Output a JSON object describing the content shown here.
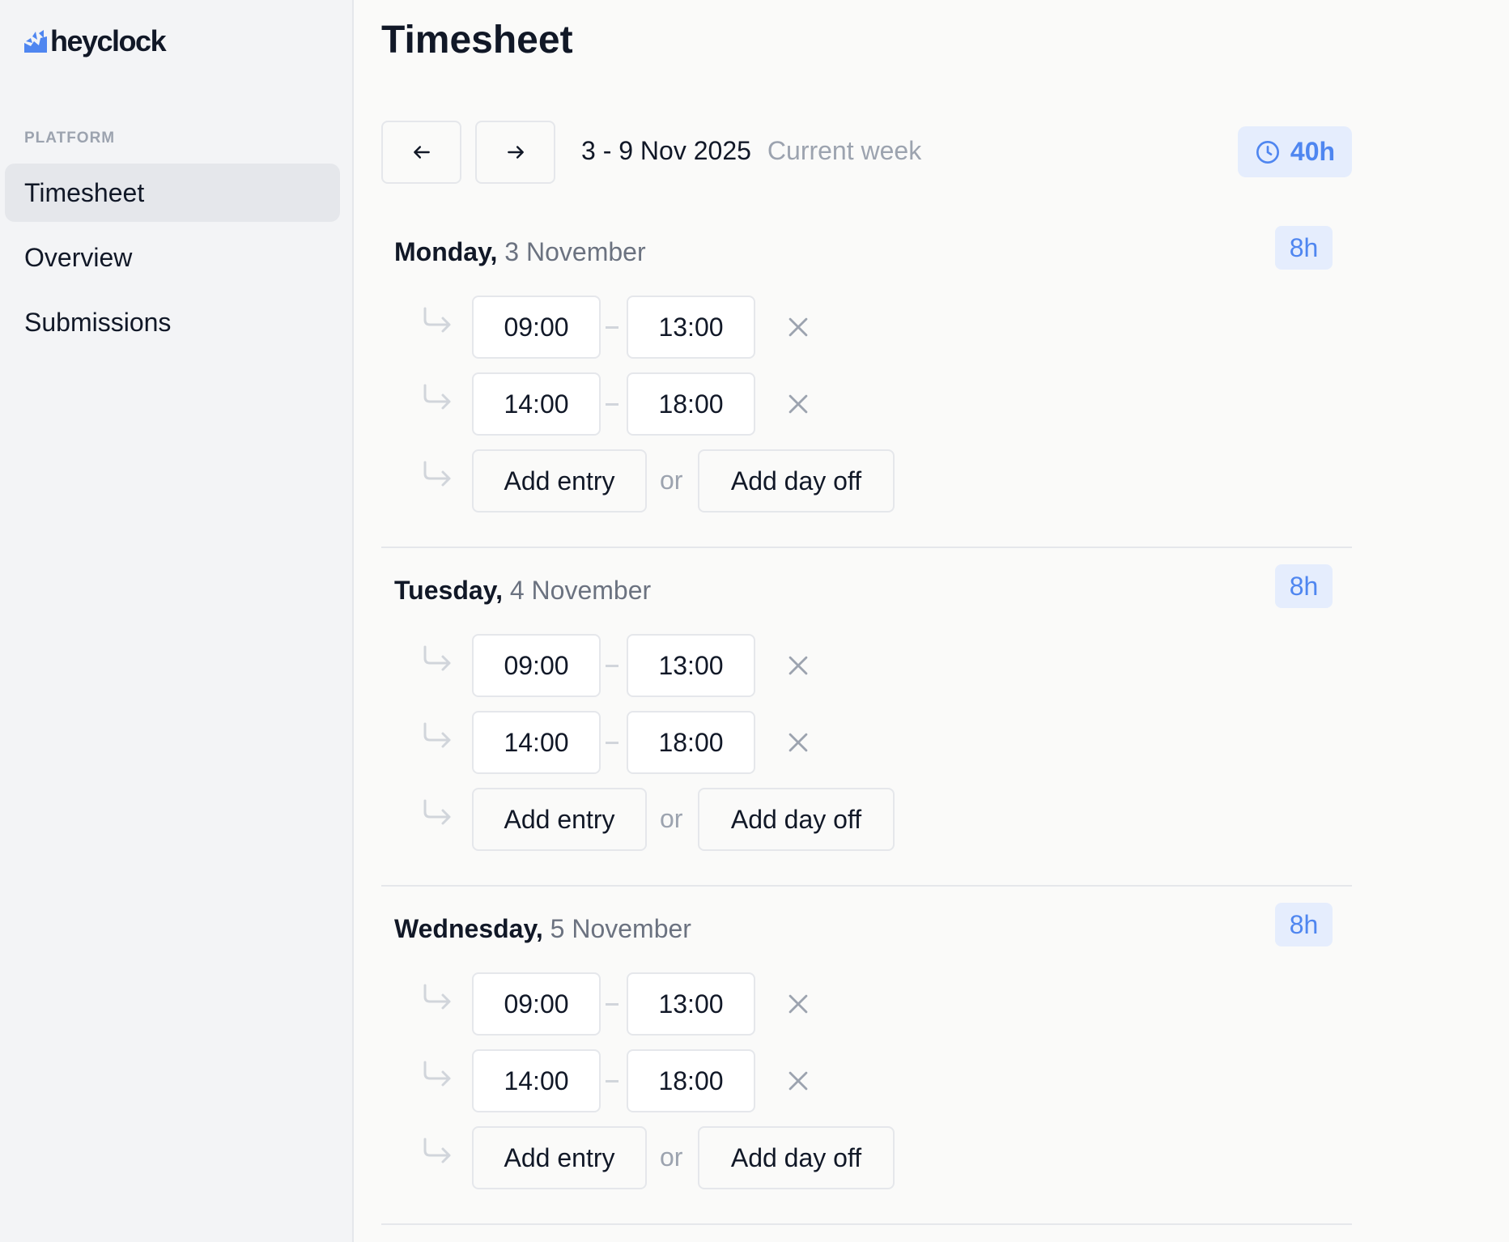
{
  "sidebar": {
    "logo": "heyclock",
    "section": "PLATFORM",
    "items": [
      {
        "label": "Timesheet",
        "active": true
      },
      {
        "label": "Overview"
      },
      {
        "label": "Submissions"
      }
    ]
  },
  "header": {
    "title": "Timesheet",
    "prev_icon": "arrow-left-icon",
    "next_icon": "arrow-right-icon",
    "week_range": "3 - 9 Nov 2025",
    "week_label": "Current week",
    "total_hours": "40h",
    "total_icon": "clock-icon"
  },
  "colors": {
    "accent": "#4f86f0",
    "badge_bg": "#e5edfd"
  },
  "days": [
    {
      "weekday": "Monday,",
      "date": "3 November",
      "hours": "8h",
      "entries": [
        {
          "start": "09:00",
          "end": "13:00"
        },
        {
          "start": "14:00",
          "end": "18:00"
        }
      ]
    },
    {
      "weekday": "Tuesday,",
      "date": "4 November",
      "hours": "8h",
      "entries": [
        {
          "start": "09:00",
          "end": "13:00"
        },
        {
          "start": "14:00",
          "end": "18:00"
        }
      ]
    },
    {
      "weekday": "Wednesday,",
      "date": "5 November",
      "hours": "8h",
      "entries": [
        {
          "start": "09:00",
          "end": "13:00"
        },
        {
          "start": "14:00",
          "end": "18:00"
        }
      ]
    }
  ],
  "actions": {
    "add_entry": "Add entry",
    "or": "or",
    "add_day_off": "Add day off"
  }
}
